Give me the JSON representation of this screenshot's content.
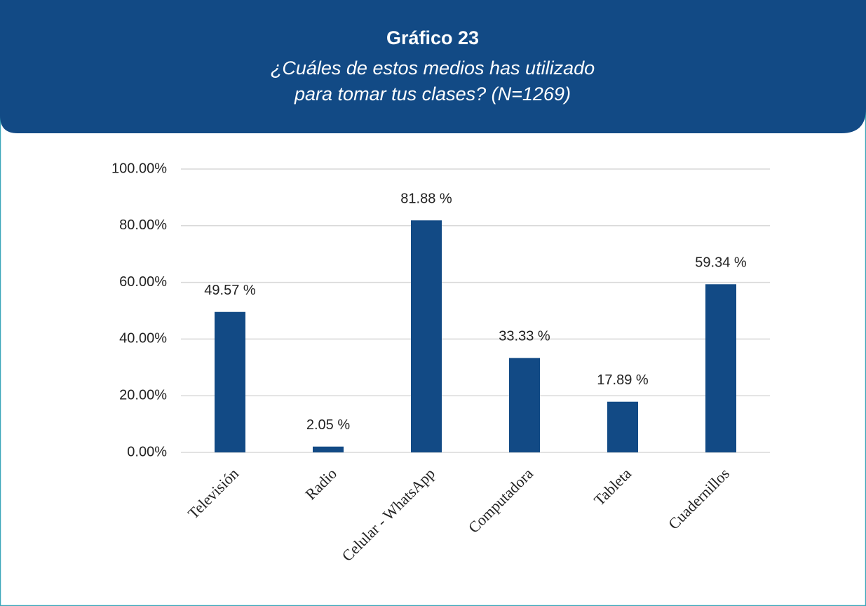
{
  "chart_data": {
    "type": "bar",
    "title": "Gráfico 23",
    "subtitle": [
      "¿Cuáles de estos medios has utilizado",
      "para tomar tus clases? (N=1269)"
    ],
    "categories": [
      "Televisión",
      "Radio",
      "Celular - WhatsApp",
      "Computadora",
      "Tableta",
      "Cuadernillos"
    ],
    "values": [
      49.57,
      2.05,
      81.88,
      33.33,
      17.89,
      59.34
    ],
    "value_labels": [
      "49.57 %",
      "2.05 %",
      "81.88 %",
      "33.33 %",
      "17.89 %",
      "59.34 %"
    ],
    "color": "#124a85",
    "ylim": [
      0,
      100
    ],
    "yticks": [
      {
        "value": 0,
        "label": "0.00%"
      },
      {
        "value": 20,
        "label": "20.00%"
      },
      {
        "value": 40,
        "label": "40.00%"
      },
      {
        "value": 60,
        "label": "60.00%"
      },
      {
        "value": 80,
        "label": "80.00%"
      },
      {
        "value": 100,
        "label": "100.00%"
      }
    ],
    "grid": true
  }
}
